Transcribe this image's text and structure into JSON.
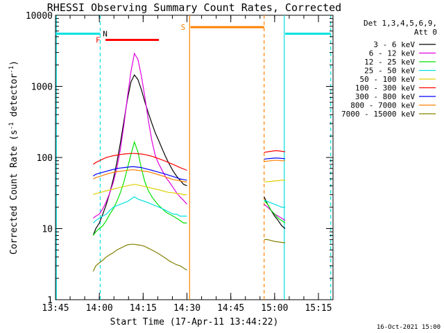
{
  "chart_data": {
    "type": "line",
    "title": "RHESSI Observing Summary Count Rates, Corrected",
    "xlabel": "Start Time (17-Apr-11 13:44:22)",
    "ylabel_main": "Corrected Count Rate (s",
    "ylabel_sup1": "-1",
    "ylabel_mid": " detector",
    "ylabel_sup2": "-1",
    "ylabel_end": ")",
    "y_scale": "log",
    "ylim": [
      1,
      10000
    ],
    "xlim": [
      13.75,
      15.333
    ],
    "x_ticks": [
      {
        "value": 13.75,
        "label": "13:45"
      },
      {
        "value": 14.0,
        "label": "14:00"
      },
      {
        "value": 14.25,
        "label": "14:15"
      },
      {
        "value": 14.5,
        "label": "14:30"
      },
      {
        "value": 14.75,
        "label": "14:45"
      },
      {
        "value": 15.0,
        "label": "15:00"
      },
      {
        "value": 15.25,
        "label": "15:15"
      }
    ],
    "y_ticks": [
      {
        "value": 1,
        "label": "1"
      },
      {
        "value": 10,
        "label": "10"
      },
      {
        "value": 100,
        "label": "100"
      },
      {
        "value": 1000,
        "label": "1000"
      },
      {
        "value": 10000,
        "label": "10000"
      }
    ],
    "legend_header_1": "Det 1,3,4,5,6,9,",
    "legend_header_2": "Att 0",
    "legend_placement": "top-right, outside plot",
    "footer": "16-Oct-2021 15:00",
    "series": [
      {
        "name": "3 - 6 keV",
        "color": "#000000",
        "x": [
          13.965,
          13.98,
          14.0,
          14.02,
          14.04,
          14.06,
          14.08,
          14.1,
          14.12,
          14.14,
          14.16,
          14.18,
          14.2,
          14.22,
          14.24,
          14.26,
          14.28,
          14.3,
          14.32,
          14.34,
          14.36,
          14.38,
          14.4,
          14.42,
          14.44,
          14.46,
          14.48,
          14.5
        ],
        "y": [
          8,
          10,
          12,
          16,
          22,
          32,
          50,
          85,
          160,
          320,
          650,
          1150,
          1450,
          1250,
          900,
          600,
          420,
          300,
          220,
          170,
          130,
          100,
          80,
          65,
          55,
          48,
          42,
          40
        ],
        "x2": [
          14.94,
          14.96,
          14.98,
          15.0,
          15.02,
          15.04,
          15.06
        ],
        "y2": [
          28,
          22,
          18,
          15,
          13,
          11,
          10
        ]
      },
      {
        "name": "6 - 12 keV",
        "color": "#e000e0",
        "x": [
          13.965,
          13.98,
          14.0,
          14.02,
          14.04,
          14.06,
          14.08,
          14.1,
          14.12,
          14.14,
          14.16,
          14.18,
          14.2,
          14.22,
          14.24,
          14.26,
          14.28,
          14.3,
          14.32,
          14.34,
          14.36,
          14.38,
          14.4,
          14.42,
          14.44,
          14.46,
          14.48,
          14.5
        ],
        "y": [
          14,
          15,
          16,
          19,
          24,
          32,
          45,
          70,
          130,
          280,
          700,
          1600,
          2900,
          2400,
          1400,
          700,
          330,
          170,
          105,
          80,
          65,
          52,
          45,
          38,
          32,
          28,
          25,
          22
        ],
        "x2": [
          14.94,
          14.96,
          14.98,
          15.0,
          15.02,
          15.04,
          15.06
        ],
        "y2": [
          22,
          20,
          18,
          16,
          15,
          14,
          13
        ]
      },
      {
        "name": "12 - 25 keV",
        "color": "#00e000",
        "x": [
          13.965,
          13.98,
          14.0,
          14.02,
          14.04,
          14.06,
          14.08,
          14.1,
          14.12,
          14.14,
          14.16,
          14.18,
          14.2,
          14.22,
          14.24,
          14.26,
          14.28,
          14.3,
          14.32,
          14.34,
          14.36,
          14.38,
          14.4,
          14.42,
          14.44,
          14.46,
          14.48,
          14.5
        ],
        "y": [
          8,
          9,
          10,
          11,
          13,
          16,
          19,
          24,
          32,
          45,
          70,
          110,
          165,
          120,
          70,
          45,
          34,
          28,
          24,
          21,
          19,
          17,
          16,
          15,
          14,
          13,
          12,
          12
        ],
        "x2": [
          14.94,
          14.96,
          14.98,
          15.0,
          15.02,
          15.04,
          15.06
        ],
        "y2": [
          25,
          22,
          18,
          16,
          14,
          13,
          12
        ]
      },
      {
        "name": "25 - 50 keV",
        "color": "#00e0e0",
        "x": [
          13.965,
          13.98,
          14.0,
          14.02,
          14.04,
          14.06,
          14.08,
          14.1,
          14.12,
          14.14,
          14.16,
          14.18,
          14.2,
          14.22,
          14.24,
          14.26,
          14.28,
          14.3,
          14.32,
          14.34,
          14.36,
          14.38,
          14.4,
          14.42,
          14.44,
          14.46,
          14.48,
          14.5
        ],
        "y": [
          12,
          13,
          14,
          15,
          16,
          18,
          20,
          21,
          22,
          23,
          24,
          26,
          28,
          26,
          25,
          24,
          23,
          22,
          21,
          20,
          19,
          18,
          17,
          16,
          16,
          15,
          15,
          15
        ],
        "x2": [
          14.94,
          14.96,
          14.98,
          15.0,
          15.02,
          15.04,
          15.06
        ],
        "y2": [
          25,
          24,
          23,
          22,
          21,
          20,
          20
        ]
      },
      {
        "name": "50 - 100 keV",
        "color": "#e0d000",
        "x": [
          13.965,
          13.98,
          14.0,
          14.02,
          14.04,
          14.06,
          14.08,
          14.1,
          14.12,
          14.14,
          14.16,
          14.18,
          14.2,
          14.22,
          14.24,
          14.26,
          14.28,
          14.3,
          14.32,
          14.34,
          14.36,
          14.38,
          14.4,
          14.42,
          14.44,
          14.46,
          14.48,
          14.5
        ],
        "y": [
          30,
          31,
          32,
          33,
          34,
          35,
          36,
          37,
          38,
          39,
          40,
          41,
          42,
          41,
          40,
          39,
          38,
          37,
          36,
          35,
          34,
          33,
          32,
          32,
          31,
          31,
          30,
          30
        ],
        "x2": [
          14.94,
          14.96,
          14.98,
          15.0,
          15.02,
          15.04,
          15.06
        ],
        "y2": [
          45,
          46,
          46,
          47,
          47,
          48,
          48
        ]
      },
      {
        "name": "100 - 300 keV",
        "color": "#ff0000",
        "x": [
          13.965,
          13.98,
          14.0,
          14.02,
          14.04,
          14.06,
          14.08,
          14.1,
          14.12,
          14.14,
          14.16,
          14.18,
          14.2,
          14.22,
          14.24,
          14.26,
          14.28,
          14.3,
          14.32,
          14.34,
          14.36,
          14.38,
          14.4,
          14.42,
          14.44,
          14.46,
          14.48,
          14.5
        ],
        "y": [
          80,
          85,
          90,
          95,
          100,
          103,
          106,
          108,
          110,
          112,
          113,
          114,
          114,
          113,
          112,
          110,
          107,
          104,
          100,
          96,
          92,
          88,
          84,
          80,
          76,
          72,
          69,
          66
        ],
        "x2": [
          14.94,
          14.96,
          14.98,
          15.0,
          15.02,
          15.04,
          15.06
        ],
        "y2": [
          118,
          120,
          122,
          124,
          124,
          122,
          120
        ]
      },
      {
        "name": "300 - 800 keV",
        "color": "#0000ff",
        "x": [
          13.965,
          13.98,
          14.0,
          14.02,
          14.04,
          14.06,
          14.08,
          14.1,
          14.12,
          14.14,
          14.16,
          14.18,
          14.2,
          14.22,
          14.24,
          14.26,
          14.28,
          14.3,
          14.32,
          14.34,
          14.36,
          14.38,
          14.4,
          14.42,
          14.44,
          14.46,
          14.48,
          14.5
        ],
        "y": [
          55,
          58,
          60,
          62,
          64,
          66,
          68,
          70,
          71,
          72,
          73,
          74,
          74,
          73,
          72,
          70,
          68,
          66,
          64,
          62,
          60,
          58,
          56,
          54,
          52,
          50,
          49,
          48
        ],
        "x2": [
          14.94,
          14.96,
          14.98,
          15.0,
          15.02,
          15.04,
          15.06
        ],
        "y2": [
          95,
          96,
          97,
          98,
          98,
          97,
          96
        ]
      },
      {
        "name": "800 - 7000 keV",
        "color": "#ff8000",
        "x": [
          13.965,
          13.98,
          14.0,
          14.02,
          14.04,
          14.06,
          14.08,
          14.1,
          14.12,
          14.14,
          14.16,
          14.18,
          14.2,
          14.22,
          14.24,
          14.26,
          14.28,
          14.3,
          14.32,
          14.34,
          14.36,
          14.38,
          14.4,
          14.42,
          14.44,
          14.46,
          14.48,
          14.5
        ],
        "y": [
          50,
          52,
          54,
          56,
          58,
          60,
          62,
          63,
          64,
          65,
          66,
          67,
          67,
          66,
          65,
          64,
          63,
          61,
          59,
          57,
          55,
          53,
          51,
          49,
          48,
          47,
          46,
          45
        ],
        "x2": [
          14.94,
          14.96,
          14.98,
          15.0,
          15.02,
          15.04,
          15.06
        ],
        "y2": [
          88,
          89,
          90,
          91,
          91,
          90,
          90
        ]
      },
      {
        "name": "7000 - 15000 keV",
        "color": "#808000",
        "x": [
          13.965,
          13.98,
          14.0,
          14.02,
          14.04,
          14.06,
          14.08,
          14.1,
          14.12,
          14.14,
          14.16,
          14.18,
          14.2,
          14.22,
          14.24,
          14.26,
          14.28,
          14.3,
          14.32,
          14.34,
          14.36,
          14.38,
          14.4,
          14.42,
          14.44,
          14.46,
          14.48,
          14.5
        ],
        "y": [
          2.5,
          3,
          3.3,
          3.6,
          4,
          4.3,
          4.6,
          5,
          5.3,
          5.6,
          5.9,
          6,
          6,
          5.9,
          5.8,
          5.6,
          5.3,
          5,
          4.7,
          4.4,
          4.1,
          3.8,
          3.5,
          3.3,
          3.1,
          3,
          2.8,
          2.6
        ],
        "x2": [
          14.94,
          14.96,
          14.98,
          15.0,
          15.02,
          15.04,
          15.06
        ],
        "y2": [
          7,
          7,
          6.8,
          6.6,
          6.5,
          6.4,
          6.3
        ]
      }
    ],
    "markers": {
      "night": [
        {
          "label": "",
          "x0": 13.75,
          "x1": 14.005,
          "y": 5500,
          "color": "#00e0e0"
        },
        {
          "label": "N",
          "x0": 15.06,
          "x1": 15.32,
          "y": 5500,
          "color": "#00e0e0"
        }
      ],
      "flare": {
        "label": "F",
        "x0": 14.035,
        "x1": 14.34,
        "y": 4500,
        "color": "#ff0000"
      },
      "saa": {
        "label": "S",
        "x0": 14.52,
        "x1": 14.94,
        "y": 6800,
        "color": "#ff8000"
      },
      "vlines": [
        {
          "x": 13.755,
          "color": "#00e0e0",
          "style": "solid"
        },
        {
          "x": 14.005,
          "color": "#00e0e0",
          "style": "dashed"
        },
        {
          "x": 14.515,
          "color": "#ff8000",
          "style": "solid"
        },
        {
          "x": 14.94,
          "color": "#ff8000",
          "style": "dashed"
        },
        {
          "x": 15.055,
          "color": "#00e0e0",
          "style": "solid"
        },
        {
          "x": 15.32,
          "color": "#00e0e0",
          "style": "dashed"
        }
      ]
    }
  }
}
